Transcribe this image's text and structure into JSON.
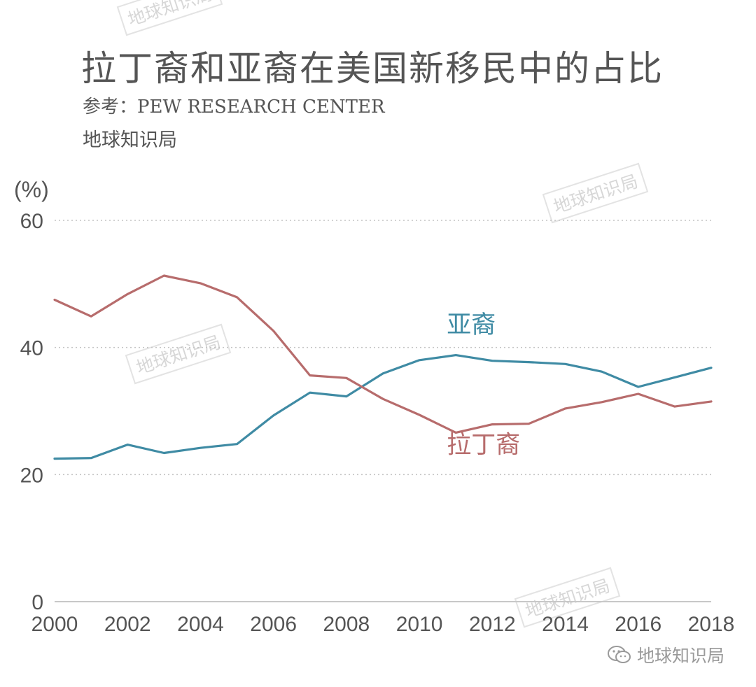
{
  "chart_data": {
    "type": "line",
    "title": "拉丁裔和亚裔在美国新移民中的占比",
    "subtitle": "参考：PEW RESEARCH CENTER",
    "author": "地球知识局",
    "ylabel": "(%)",
    "x": [
      2000,
      2001,
      2002,
      2003,
      2004,
      2005,
      2006,
      2007,
      2008,
      2009,
      2010,
      2011,
      2012,
      2013,
      2014,
      2015,
      2016,
      2017,
      2018
    ],
    "x_ticks": [
      "2000",
      "2002",
      "2004",
      "2006",
      "2008",
      "2010",
      "2012",
      "2014",
      "2016",
      "2018"
    ],
    "y_ticks": [
      "0",
      "20",
      "40",
      "60"
    ],
    "ylim": [
      0,
      60
    ],
    "xlim": [
      2000,
      2018
    ],
    "grid": "horizontal dotted",
    "series": [
      {
        "name": "亚裔",
        "color": "#3f8ba4",
        "values": [
          22.5,
          22.6,
          24.7,
          23.4,
          24.2,
          24.8,
          29.3,
          32.9,
          32.3,
          35.9,
          38.0,
          38.8,
          37.9,
          37.7,
          37.4,
          36.2,
          33.8,
          35.3,
          36.8
        ]
      },
      {
        "name": "拉丁裔",
        "color": "#b76c6c",
        "values": [
          47.5,
          44.9,
          48.4,
          51.3,
          50.1,
          47.9,
          42.6,
          35.6,
          35.2,
          31.9,
          29.4,
          26.6,
          27.9,
          28.0,
          30.4,
          31.4,
          32.7,
          30.7,
          31.5
        ]
      }
    ]
  },
  "watermarks": [
    "地球知识局",
    "地球知识局",
    "地球知识局",
    "地球知识局"
  ],
  "footer": {
    "brand": "地球知识局",
    "icon": "wechat-icon"
  }
}
